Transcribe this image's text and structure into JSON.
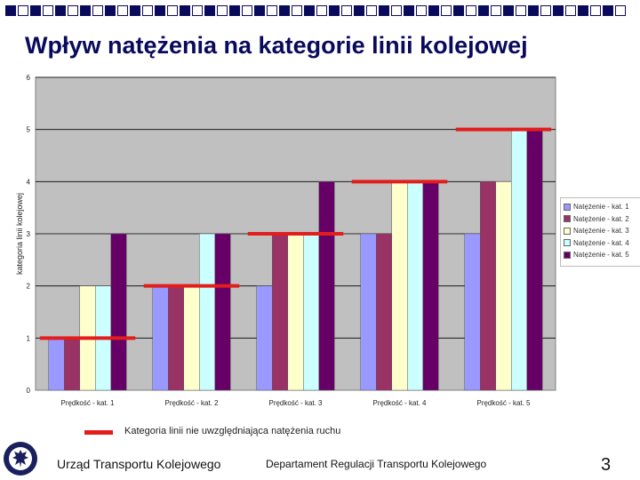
{
  "slide": {
    "title": "Wpływ natężenia na kategorie linii kolejowej",
    "page_number": "3",
    "footer_left": "Urząd Transportu Kolejowego",
    "footer_mid": "Departament Regulacji Transportu Kolejowego",
    "legend_note": "Kategoria linii nie uwzględniająca natężenia ruchu",
    "accent_color": "#0a0a5c",
    "top_bar_colors": [
      "#0a0a5c",
      "#ffffff"
    ]
  },
  "chart_data": {
    "type": "bar",
    "title": "",
    "xlabel": "",
    "ylabel": "kategoria linii kolejowej",
    "ylim": [
      0,
      6
    ],
    "yticks": [
      "0",
      "1",
      "2",
      "3",
      "4",
      "5",
      "6"
    ],
    "grid": true,
    "legend_position": "right",
    "categories": [
      "Prędkość - kat. 1",
      "Prędkość - kat. 2",
      "Prędkość - kat. 3",
      "Prędkość - kat. 4",
      "Prędkość - kat. 5"
    ],
    "series": [
      {
        "name": "Natężenie - kat. 1",
        "color": "#9999ff",
        "values": [
          1,
          2,
          2,
          3,
          3
        ]
      },
      {
        "name": "Natężenie - kat. 2",
        "color": "#993366",
        "values": [
          1,
          2,
          3,
          3,
          4
        ]
      },
      {
        "name": "Natężenie - kat. 3",
        "color": "#ffffcc",
        "values": [
          2,
          2,
          3,
          4,
          4
        ]
      },
      {
        "name": "Natężenie - kat. 4",
        "color": "#ccffff",
        "values": [
          2,
          3,
          3,
          4,
          5
        ]
      },
      {
        "name": "Natężenie - kat. 5",
        "color": "#660066",
        "values": [
          3,
          3,
          4,
          4,
          5
        ]
      }
    ],
    "reference_lines": {
      "name": "Kategoria linii nie uwzględniająca natężenia ruchu",
      "color": "#e31c1c",
      "values": [
        1,
        2,
        3,
        4,
        5
      ]
    }
  }
}
